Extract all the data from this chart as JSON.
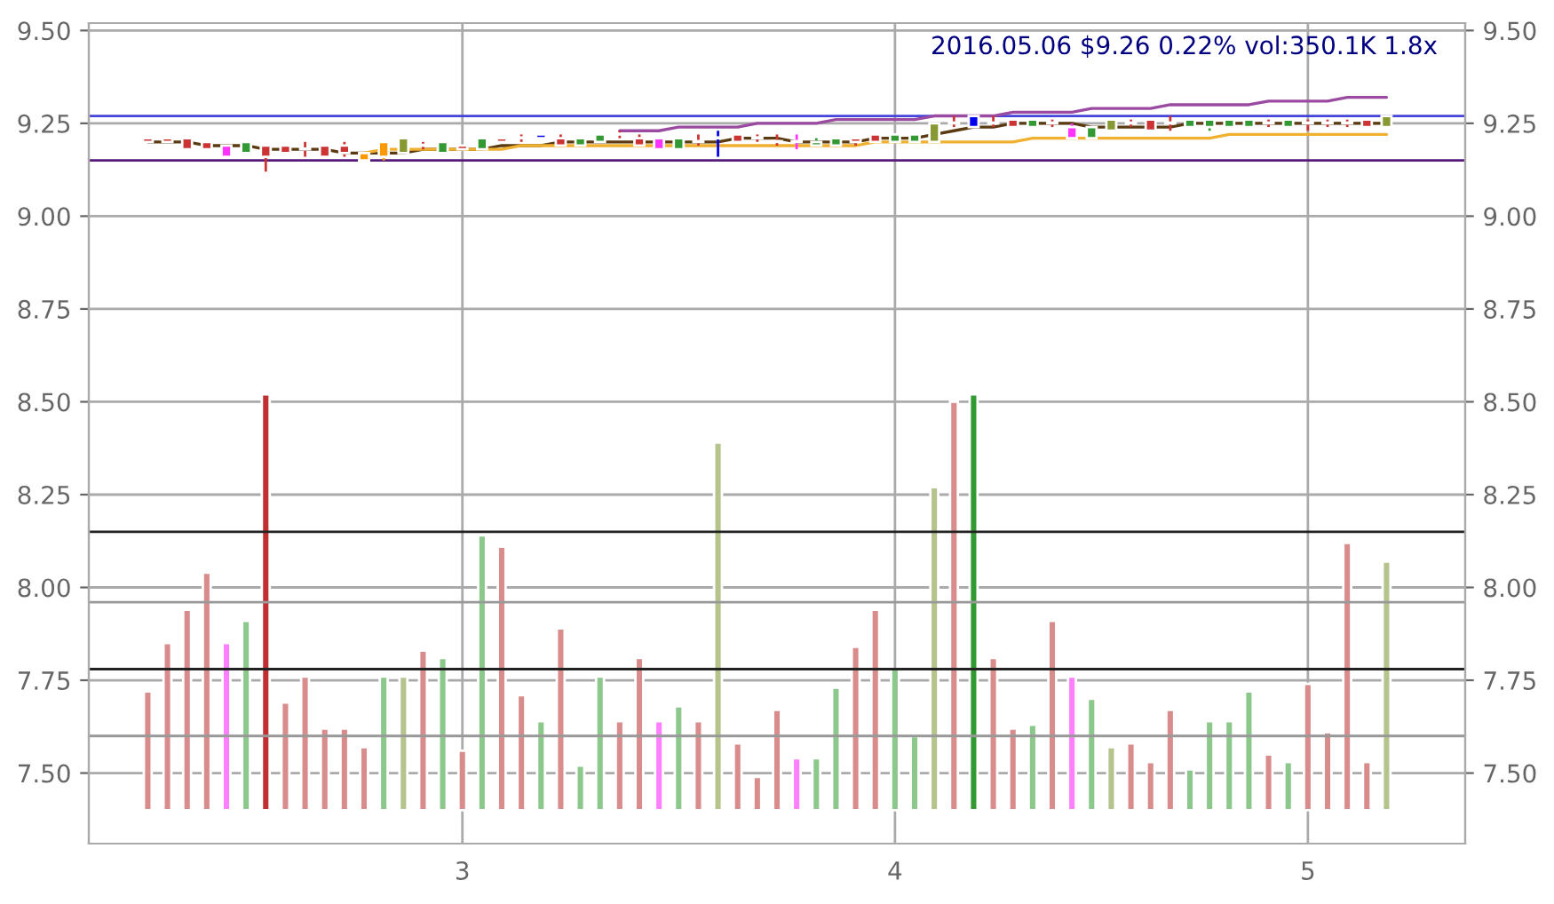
{
  "chart_data": {
    "type": "candlestick",
    "title": "2016.05.06 $9.26 0.22% vol:350.1K 1.8x",
    "categories": [
      null,
      null,
      null,
      null,
      null,
      null,
      null,
      null,
      null,
      null,
      null,
      null,
      null,
      null,
      null,
      null,
      "3",
      null,
      null,
      null,
      null,
      null,
      null,
      null,
      null,
      null,
      null,
      null,
      null,
      null,
      null,
      null,
      null,
      null,
      null,
      null,
      null,
      null,
      "4",
      null,
      null,
      null,
      null,
      null,
      null,
      null,
      null,
      null,
      null,
      null,
      null,
      null,
      null,
      null,
      null,
      null,
      null,
      null,
      null,
      "5",
      null,
      null,
      null,
      null
    ],
    "ohlc": [
      [
        9.21,
        9.21,
        9.2,
        9.2
      ],
      [
        9.21,
        9.21,
        9.2,
        9.2
      ],
      [
        9.21,
        9.21,
        9.18,
        9.18
      ],
      [
        9.2,
        9.2,
        9.18,
        9.18
      ],
      [
        9.19,
        9.19,
        9.16,
        9.16
      ],
      [
        9.17,
        9.2,
        9.17,
        9.2
      ],
      [
        9.19,
        9.19,
        9.12,
        9.16
      ],
      [
        9.19,
        9.19,
        9.17,
        9.17
      ],
      [
        9.18,
        9.2,
        9.16,
        9.18
      ],
      [
        9.19,
        9.19,
        9.16,
        9.16
      ],
      [
        9.19,
        9.2,
        9.16,
        9.17
      ],
      [
        9.17,
        9.17,
        9.15,
        9.15
      ],
      [
        9.16,
        9.2,
        9.15,
        9.2
      ],
      [
        9.17,
        9.21,
        9.17,
        9.21
      ],
      [
        9.19,
        9.2,
        9.18,
        9.19
      ],
      [
        9.17,
        9.2,
        9.17,
        9.2
      ],
      [
        9.19,
        9.19,
        9.18,
        9.18
      ],
      [
        9.18,
        9.21,
        9.18,
        9.21
      ],
      [
        9.21,
        9.21,
        9.2,
        9.2
      ],
      [
        9.21,
        9.22,
        9.2,
        9.21
      ],
      [
        9.21,
        9.22,
        9.21,
        9.22
      ],
      [
        9.21,
        9.22,
        9.19,
        9.19
      ],
      [
        9.19,
        9.21,
        9.19,
        9.21
      ],
      [
        9.2,
        9.22,
        9.2,
        9.22
      ],
      [
        9.22,
        9.23,
        9.21,
        9.22
      ],
      [
        9.21,
        9.22,
        9.19,
        9.19
      ],
      [
        9.21,
        9.21,
        9.18,
        9.18
      ],
      [
        9.18,
        9.21,
        9.18,
        9.21
      ],
      [
        9.2,
        9.22,
        9.19,
        9.2
      ],
      [
        9.21,
        9.23,
        9.16,
        9.21
      ],
      [
        9.22,
        9.22,
        9.2,
        9.2
      ],
      [
        9.21,
        9.22,
        9.2,
        9.21
      ],
      [
        9.2,
        9.22,
        9.19,
        9.2
      ],
      [
        9.2,
        9.22,
        9.18,
        9.2
      ],
      [
        9.19,
        9.21,
        9.19,
        9.2
      ],
      [
        9.19,
        9.21,
        9.19,
        9.21
      ],
      [
        9.21,
        9.21,
        9.19,
        9.2
      ],
      [
        9.22,
        9.22,
        9.2,
        9.2
      ],
      [
        9.2,
        9.22,
        9.2,
        9.22
      ],
      [
        9.2,
        9.22,
        9.2,
        9.22
      ],
      [
        9.2,
        9.25,
        9.2,
        9.25
      ],
      [
        9.25,
        9.27,
        9.24,
        9.25
      ],
      [
        9.24,
        9.27,
        9.24,
        9.27
      ],
      [
        9.25,
        9.27,
        9.24,
        9.25
      ],
      [
        9.26,
        9.26,
        9.24,
        9.24
      ],
      [
        9.24,
        9.26,
        9.24,
        9.26
      ],
      [
        9.25,
        9.26,
        9.24,
        9.25
      ],
      [
        9.24,
        9.25,
        9.21,
        9.21
      ],
      [
        9.21,
        9.24,
        9.21,
        9.24
      ],
      [
        9.23,
        9.26,
        9.23,
        9.26
      ],
      [
        9.25,
        9.26,
        9.24,
        9.25
      ],
      [
        9.26,
        9.26,
        9.23,
        9.23
      ],
      [
        9.25,
        9.27,
        9.23,
        9.25
      ],
      [
        9.24,
        9.26,
        9.24,
        9.26
      ],
      [
        9.24,
        9.26,
        9.23,
        9.26
      ],
      [
        9.24,
        9.26,
        9.24,
        9.26
      ],
      [
        9.24,
        9.26,
        9.24,
        9.26
      ],
      [
        9.25,
        9.26,
        9.24,
        9.25
      ],
      [
        9.24,
        9.26,
        9.24,
        9.26
      ],
      [
        9.25,
        9.26,
        9.23,
        9.25
      ],
      [
        9.25,
        9.26,
        9.24,
        9.25
      ],
      [
        9.25,
        9.26,
        9.24,
        9.25
      ],
      [
        9.26,
        9.26,
        9.24,
        9.24
      ],
      [
        9.24,
        9.27,
        9.24,
        9.27
      ]
    ],
    "colors": [
      "#cc3333",
      "#cc3333",
      "#cc3333",
      "#cc3333",
      "#ff33ff",
      "#339933",
      "#cc3333",
      "#cc3333",
      "#cc3333",
      "#cc3333",
      "#cc3333",
      "#ff9900",
      "#ff9900",
      "#889933",
      "#cc3333",
      "#339933",
      "#cc3333",
      "#339933",
      "#cc3333",
      "#cc3333",
      "#0000ee",
      "#cc3333",
      "#339933",
      "#339933",
      "#cc3333",
      "#cc3333",
      "#ff33ff",
      "#339933",
      "#cc3333",
      "#0000ee",
      "#cc3333",
      "#cc3333",
      "#cc3333",
      "#ff33ff",
      "#339933",
      "#339933",
      "#cc3333",
      "#cc3333",
      "#339933",
      "#339933",
      "#889933",
      "#cc3333",
      "#0000ee",
      "#cc3333",
      "#cc3333",
      "#339933",
      "#cc3333",
      "#ff33ff",
      "#339933",
      "#889933",
      "#cc3333",
      "#cc3333",
      "#cc3333",
      "#339933",
      "#339933",
      "#339933",
      "#339933",
      "#cc3333",
      "#339933",
      "#cc3333",
      "#cc3333",
      "#cc3333",
      "#cc3333",
      "#889933"
    ],
    "series": [
      {
        "type": "bar",
        "values": [
          0.32,
          0.45,
          0.54,
          0.64,
          0.45,
          0.51,
          1.12,
          0.29,
          0.36,
          0.22,
          0.22,
          0.17,
          0.36,
          0.36,
          0.43,
          0.41,
          0.16,
          0.74,
          0.71,
          0.31,
          0.24,
          0.49,
          0.12,
          0.36,
          0.24,
          0.41,
          0.24,
          0.28,
          0.24,
          0.99,
          0.18,
          0.09,
          0.27,
          0.14,
          0.14,
          0.33,
          0.44,
          0.54,
          0.38,
          0.2,
          0.87,
          1.1,
          1.12,
          0.41,
          0.22,
          0.23,
          0.51,
          0.36,
          0.3,
          0.17,
          0.18,
          0.13,
          0.27,
          0.11,
          0.24,
          0.24,
          0.32,
          0.15,
          0.13,
          0.34,
          0.21,
          0.72,
          0.13,
          0.67
        ],
        "base": [
          7.4,
          7.4,
          7.4,
          7.4,
          7.4,
          7.4,
          7.4,
          7.4,
          7.4,
          7.4,
          7.4,
          7.4,
          7.4,
          7.4,
          7.4,
          7.4,
          7.4,
          7.4,
          7.4,
          7.4,
          7.4,
          7.4,
          7.4,
          7.4,
          7.4,
          7.4,
          7.4,
          7.4,
          7.4,
          7.4,
          7.4,
          7.4,
          7.4,
          7.4,
          7.4,
          7.4,
          7.4,
          7.4,
          7.4,
          7.4,
          7.4,
          7.4,
          7.4,
          7.4,
          7.4,
          7.4,
          7.4,
          7.4,
          7.4,
          7.4,
          7.4,
          7.4,
          7.4,
          7.4,
          7.4,
          7.4,
          7.4,
          7.4,
          7.4,
          7.4,
          7.4,
          7.4,
          7.4,
          7.4
        ],
        "colors": [
          "#d98c8c",
          "#d98c8c",
          "#d98c8c",
          "#d98c8c",
          "#ff80ff",
          "#8cc88c",
          "#c03030",
          "#d98c8c",
          "#d98c8c",
          "#d98c8c",
          "#d98c8c",
          "#d98c8c",
          "#8cc88c",
          "#b4c48c",
          "#d98c8c",
          "#8cc88c",
          "#d98c8c",
          "#8cc88c",
          "#d98c8c",
          "#d98c8c",
          "#8cc88c",
          "#d98c8c",
          "#8cc88c",
          "#8cc88c",
          "#d98c8c",
          "#d98c8c",
          "#ff80ff",
          "#8cc88c",
          "#d98c8c",
          "#b4c48c",
          "#d98c8c",
          "#d98c8c",
          "#d98c8c",
          "#ff80ff",
          "#8cc88c",
          "#8cc88c",
          "#d98c8c",
          "#d98c8c",
          "#8cc88c",
          "#8cc88c",
          "#b4c48c",
          "#d98c8c",
          "#339933",
          "#d98c8c",
          "#d98c8c",
          "#8cc88c",
          "#d98c8c",
          "#ff80ff",
          "#8cc88c",
          "#b4c48c",
          "#d98c8c",
          "#d98c8c",
          "#d98c8c",
          "#8cc88c",
          "#8cc88c",
          "#8cc88c",
          "#8cc88c",
          "#d98c8c",
          "#8cc88c",
          "#d98c8c",
          "#d98c8c",
          "#d98c8c",
          "#d98c8c",
          "#b4c48c"
        ]
      },
      {
        "type": "line",
        "color": "#5a3a10",
        "values": [
          9.2,
          9.2,
          9.2,
          9.19,
          9.19,
          9.19,
          9.18,
          9.18,
          9.18,
          9.18,
          9.17,
          9.17,
          9.17,
          9.17,
          9.18,
          9.18,
          9.18,
          9.18,
          9.19,
          9.19,
          9.19,
          9.2,
          9.2,
          9.2,
          9.2,
          9.2,
          9.2,
          9.2,
          9.2,
          9.2,
          9.21,
          9.21,
          9.21,
          9.2,
          9.2,
          9.2,
          9.2,
          9.21,
          9.21,
          9.21,
          9.22,
          9.23,
          9.24,
          9.24,
          9.25,
          9.25,
          9.25,
          9.25,
          9.24,
          9.24,
          9.24,
          9.24,
          9.24,
          9.25,
          9.25,
          9.25,
          9.25,
          9.25,
          9.25,
          9.25,
          9.25,
          9.25,
          9.25,
          9.25
        ]
      },
      {
        "type": "line",
        "color": "#f0b030",
        "values": [
          null,
          null,
          null,
          null,
          null,
          null,
          null,
          null,
          null,
          null,
          null,
          9.17,
          9.18,
          9.18,
          9.18,
          9.18,
          9.18,
          9.18,
          9.18,
          9.19,
          9.19,
          9.19,
          9.19,
          9.19,
          9.19,
          9.19,
          9.19,
          9.19,
          9.19,
          9.19,
          9.19,
          9.19,
          9.19,
          9.19,
          9.19,
          9.19,
          9.19,
          9.2,
          9.2,
          9.2,
          9.2,
          9.2,
          9.2,
          9.2,
          9.2,
          9.21,
          9.21,
          9.21,
          9.21,
          9.21,
          9.21,
          9.21,
          9.21,
          9.21,
          9.21,
          9.22,
          9.22,
          9.22,
          9.22,
          9.22,
          9.22,
          9.22,
          9.22,
          9.22
        ]
      },
      {
        "type": "line",
        "color": "#9a4aa0",
        "values": [
          null,
          null,
          null,
          null,
          null,
          null,
          null,
          null,
          null,
          null,
          null,
          null,
          null,
          null,
          null,
          null,
          null,
          null,
          null,
          null,
          null,
          null,
          null,
          null,
          9.23,
          9.23,
          9.23,
          9.24,
          9.24,
          9.24,
          9.24,
          9.25,
          9.25,
          9.25,
          9.25,
          9.26,
          9.26,
          9.26,
          9.26,
          9.26,
          9.27,
          9.27,
          9.27,
          9.27,
          9.28,
          9.28,
          9.28,
          9.28,
          9.29,
          9.29,
          9.29,
          9.29,
          9.3,
          9.3,
          9.3,
          9.3,
          9.3,
          9.31,
          9.31,
          9.31,
          9.31,
          9.32,
          9.32,
          9.32
        ]
      }
    ],
    "ref_lines": [
      {
        "axis": "y",
        "value": 9.27,
        "color": "#4444dd"
      },
      {
        "axis": "y",
        "value": 9.15,
        "color": "#551a7a"
      },
      {
        "axis": "y",
        "value": 8.15,
        "color": "#222222"
      },
      {
        "axis": "y",
        "value": 7.96,
        "color": "#999999"
      },
      {
        "axis": "y",
        "value": 7.78,
        "color": "#222222"
      },
      {
        "axis": "y",
        "value": 7.6,
        "color": "#999999"
      }
    ],
    "ylim": [
      7.31,
      9.52
    ],
    "yticks": [
      {
        "value": 7.5,
        "label": "7.50"
      },
      {
        "value": 7.75,
        "label": "7.75"
      },
      {
        "value": 8.0,
        "label": "8.00"
      },
      {
        "value": 8.25,
        "label": "8.25"
      },
      {
        "value": 8.5,
        "label": "8.50"
      },
      {
        "value": 8.75,
        "label": "8.75"
      },
      {
        "value": 9.0,
        "label": "9.00"
      },
      {
        "value": 9.25,
        "label": "9.25"
      },
      {
        "value": 9.5,
        "label": "9.50"
      }
    ],
    "y2lim": [
      7.31,
      9.52
    ],
    "y2ticks": [
      {
        "value": 7.5,
        "label": "7.50"
      },
      {
        "value": 7.75,
        "label": "7.75"
      },
      {
        "value": 8.0,
        "label": "8.00"
      },
      {
        "value": 8.25,
        "label": "8.25"
      },
      {
        "value": 8.5,
        "label": "8.50"
      },
      {
        "value": 8.75,
        "label": "8.75"
      },
      {
        "value": 9.0,
        "label": "9.00"
      },
      {
        "value": 9.25,
        "label": "9.25"
      },
      {
        "value": 9.5,
        "label": "9.50"
      }
    ],
    "grid": true
  }
}
